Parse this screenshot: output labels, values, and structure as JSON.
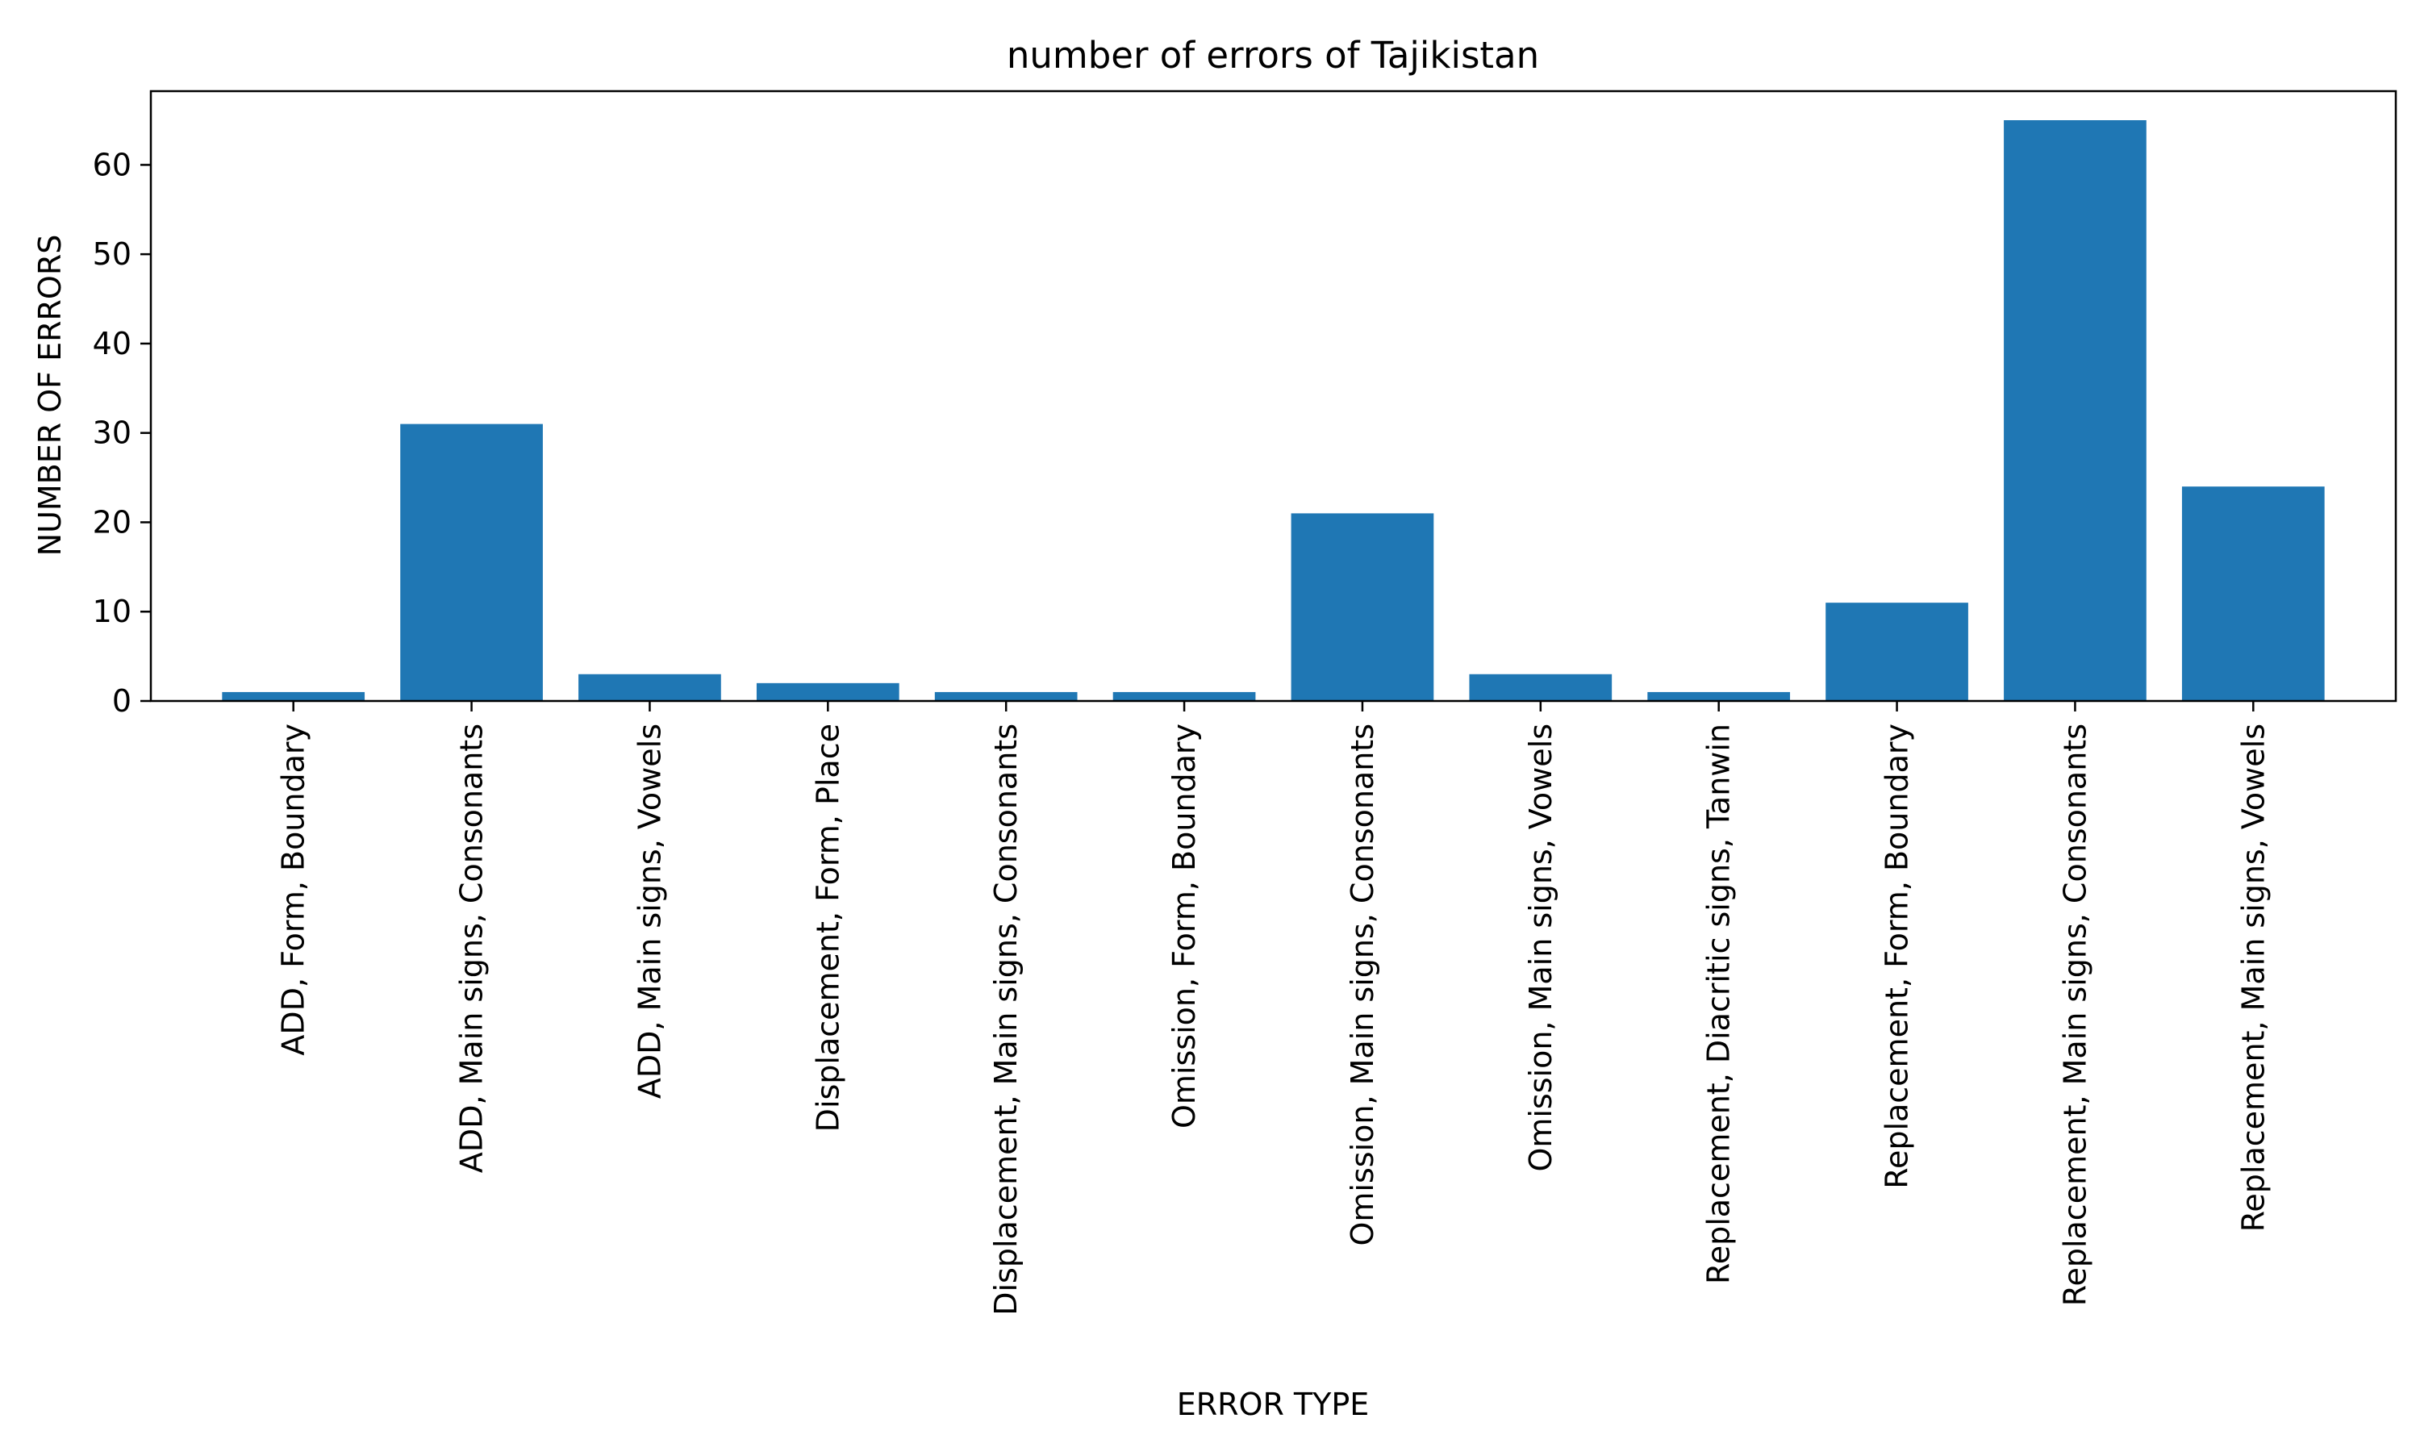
{
  "chart_data": {
    "type": "bar",
    "title": "number of errors of Tajikistan",
    "xlabel": "ERROR TYPE",
    "ylabel": "NUMBER OF ERRORS",
    "categories": [
      "ADD, Form, Boundary",
      "ADD, Main signs, Consonants",
      "ADD, Main signs, Vowels",
      "Displacement, Form, Place",
      "Displacement, Main signs, Consonants",
      "Omission, Form, Boundary",
      "Omission, Main signs, Consonants",
      "Omission, Main signs, Vowels",
      "Replacement, Diacritic signs, Tanwin",
      "Replacement, Form, Boundary",
      "Replacement, Main signs, Consonants",
      "Replacement, Main signs, Vowels"
    ],
    "values": [
      1,
      31,
      3,
      2,
      1,
      1,
      21,
      3,
      1,
      11,
      65,
      24
    ],
    "ylim": [
      0,
      68.25
    ],
    "yticks": [
      0,
      10,
      20,
      30,
      40,
      50,
      60
    ],
    "grid": false,
    "bar_color": "#1f77b4"
  }
}
